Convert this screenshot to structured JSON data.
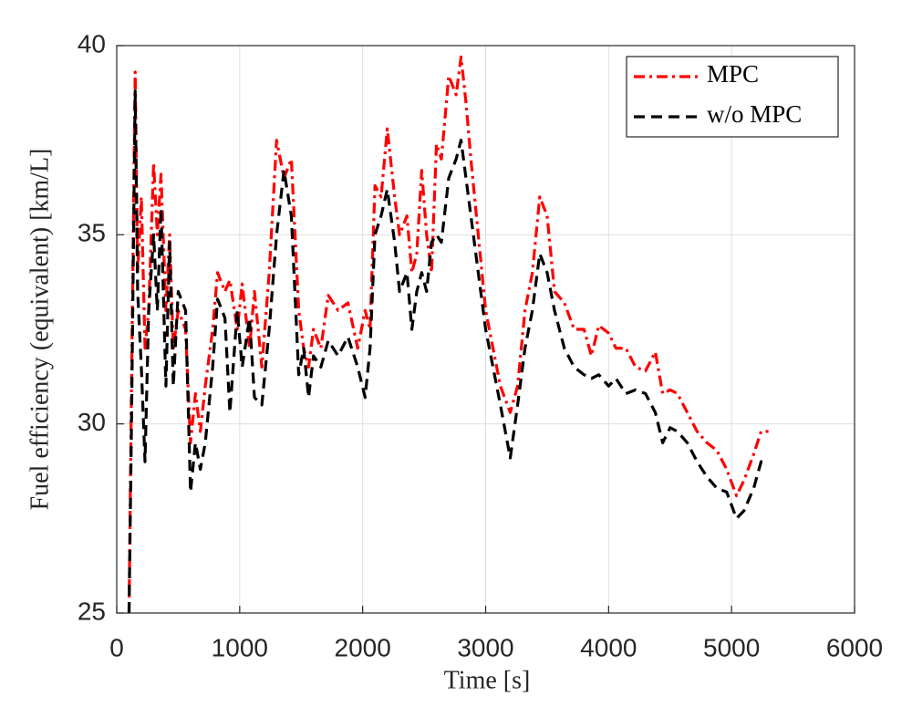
{
  "chart_data": {
    "type": "line",
    "x_label": "Time [s]",
    "y_label": "Fuel efficiency (equivalent) [km/L]",
    "x": [
      100,
      120,
      150,
      170,
      200,
      230,
      260,
      300,
      330,
      360,
      400,
      430,
      460,
      500,
      560,
      600,
      640,
      680,
      720,
      780,
      820,
      880,
      920,
      980,
      1020,
      1080,
      1120,
      1180,
      1240,
      1300,
      1360,
      1420,
      1480,
      1520,
      1560,
      1600,
      1660,
      1720,
      1800,
      1880,
      1960,
      2020,
      2060,
      2100,
      2150,
      2200,
      2260,
      2300,
      2360,
      2400,
      2440,
      2480,
      2520,
      2560,
      2600,
      2640,
      2700,
      2760,
      2800,
      2840,
      2880,
      2940,
      3000,
      3060,
      3120,
      3200,
      3260,
      3320,
      3380,
      3440,
      3500,
      3560,
      3640,
      3720,
      3800,
      3860,
      3920,
      4000,
      4060,
      4140,
      4220,
      4300,
      4380,
      4440,
      4500,
      4560,
      4640,
      4720,
      4800,
      4880,
      4960,
      5040,
      5100,
      5180,
      5240,
      5300
    ],
    "series": [
      {
        "name": "MPC",
        "color": "#ff0000",
        "linestyle": "dashdot",
        "values": [
          25,
          31,
          39.3,
          34,
          36,
          32,
          33,
          36.9,
          35,
          36.6,
          33,
          35,
          32,
          33,
          32.5,
          29.5,
          30.8,
          29.8,
          31,
          32.5,
          34,
          33.5,
          33.8,
          32.5,
          33.7,
          32,
          33.5,
          31.5,
          34,
          37.5,
          36.5,
          37,
          33,
          32,
          31.5,
          32.5,
          32,
          33.4,
          33,
          33.2,
          32,
          33,
          32.5,
          36.3,
          36,
          37.8,
          36,
          35,
          35.5,
          34,
          34.5,
          36.7,
          35,
          34,
          37.4,
          37,
          39.2,
          38.7,
          39.7,
          38.5,
          37,
          35,
          33,
          32,
          31,
          30.3,
          31,
          33,
          34,
          36,
          35.5,
          33.5,
          33.2,
          32.5,
          32.5,
          31.8,
          32.6,
          32.4,
          32,
          32,
          31.5,
          31.4,
          31.9,
          30.8,
          30.9,
          30.8,
          30.3,
          29.8,
          29.5,
          29.3,
          28.8,
          28.1,
          28.5,
          29.2,
          29.8,
          29.8
        ]
      },
      {
        "name": "w/o MPC",
        "color": "#000000",
        "linestyle": "dashed",
        "values": [
          25,
          30,
          38.8,
          33.5,
          31.5,
          29,
          33,
          35,
          33,
          35.7,
          31,
          34.8,
          31,
          33.5,
          33,
          28.2,
          29.5,
          28.8,
          29.5,
          31.5,
          33.3,
          32.8,
          30.3,
          33,
          31.5,
          32.8,
          30.7,
          30.5,
          32.5,
          35,
          36.7,
          35.5,
          31.3,
          32,
          30.7,
          31.8,
          31.5,
          32.2,
          31.8,
          32.3,
          31.5,
          30.7,
          32,
          35,
          35.5,
          36.2,
          34.8,
          33.5,
          34,
          32.5,
          33.5,
          34,
          33.5,
          34.8,
          35,
          34.8,
          36.5,
          37,
          37.5,
          36.5,
          35.5,
          34,
          32.5,
          31.5,
          30.5,
          29.1,
          30.5,
          32,
          33,
          34.5,
          34,
          33,
          32,
          31.5,
          31.3,
          31.2,
          31.3,
          31,
          31.2,
          30.8,
          30.9,
          30.8,
          30.3,
          29.5,
          29.9,
          29.8,
          29.5,
          29,
          28.6,
          28.3,
          28.2,
          27.5,
          27.7,
          28.3,
          29,
          29
        ]
      }
    ],
    "xlim": [
      0,
      6000
    ],
    "xticks": [
      0,
      1000,
      2000,
      3000,
      4000,
      5000,
      6000
    ],
    "ylim": [
      25,
      40
    ],
    "yticks": [
      25,
      30,
      35,
      40
    ],
    "grid": true,
    "legend": "upper right"
  }
}
